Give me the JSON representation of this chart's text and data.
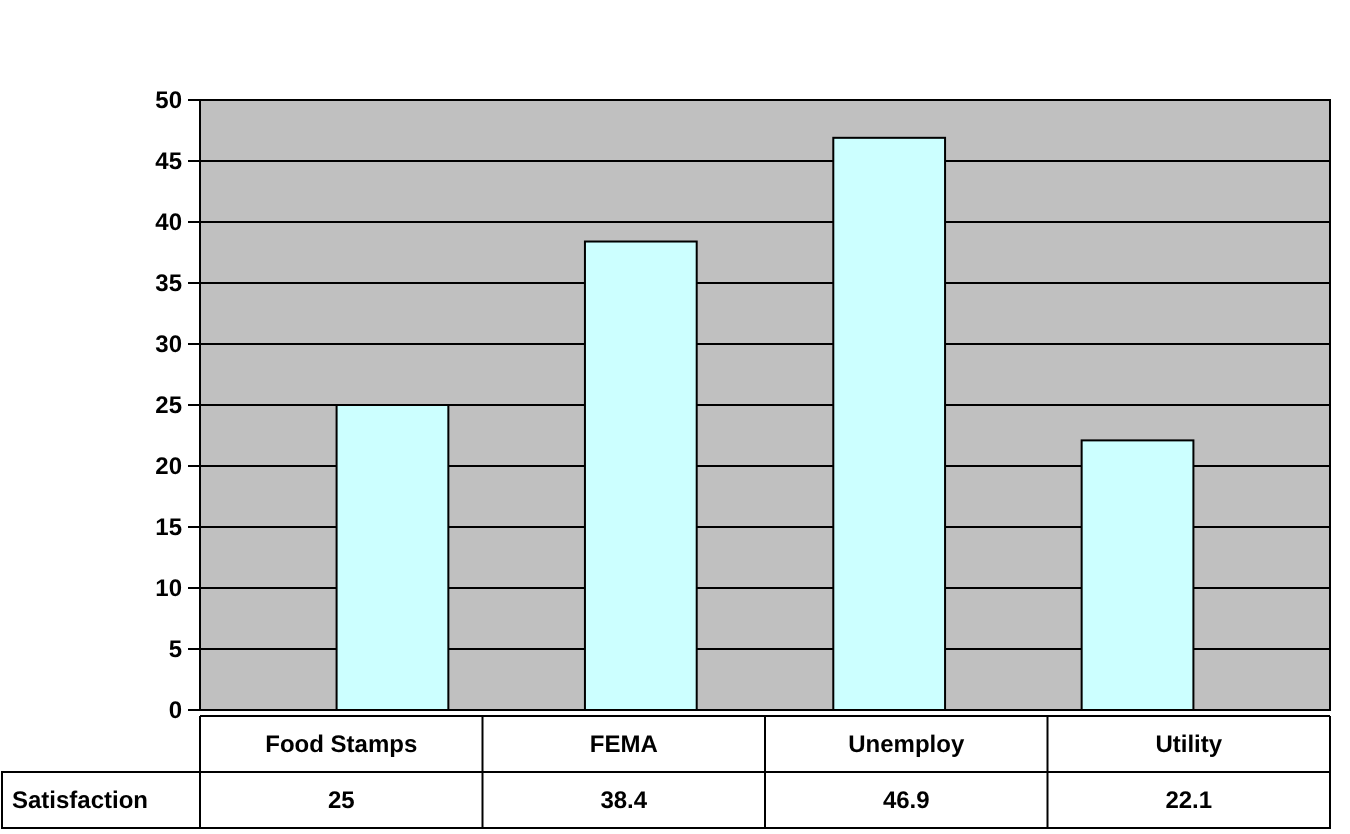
{
  "chart_data": {
    "type": "bar",
    "categories": [
      "Food Stamps",
      "FEMA",
      "Unemploy",
      "Utility"
    ],
    "series": [
      {
        "name": "Satisfaction",
        "color": "#ccffff",
        "values": [
          25,
          38.4,
          46.9,
          22.1
        ]
      }
    ],
    "ylim": [
      0,
      50
    ],
    "yticks": [
      0,
      5,
      10,
      15,
      20,
      25,
      30,
      35,
      40,
      45,
      50
    ],
    "grid": "y",
    "data_labels": true
  }
}
